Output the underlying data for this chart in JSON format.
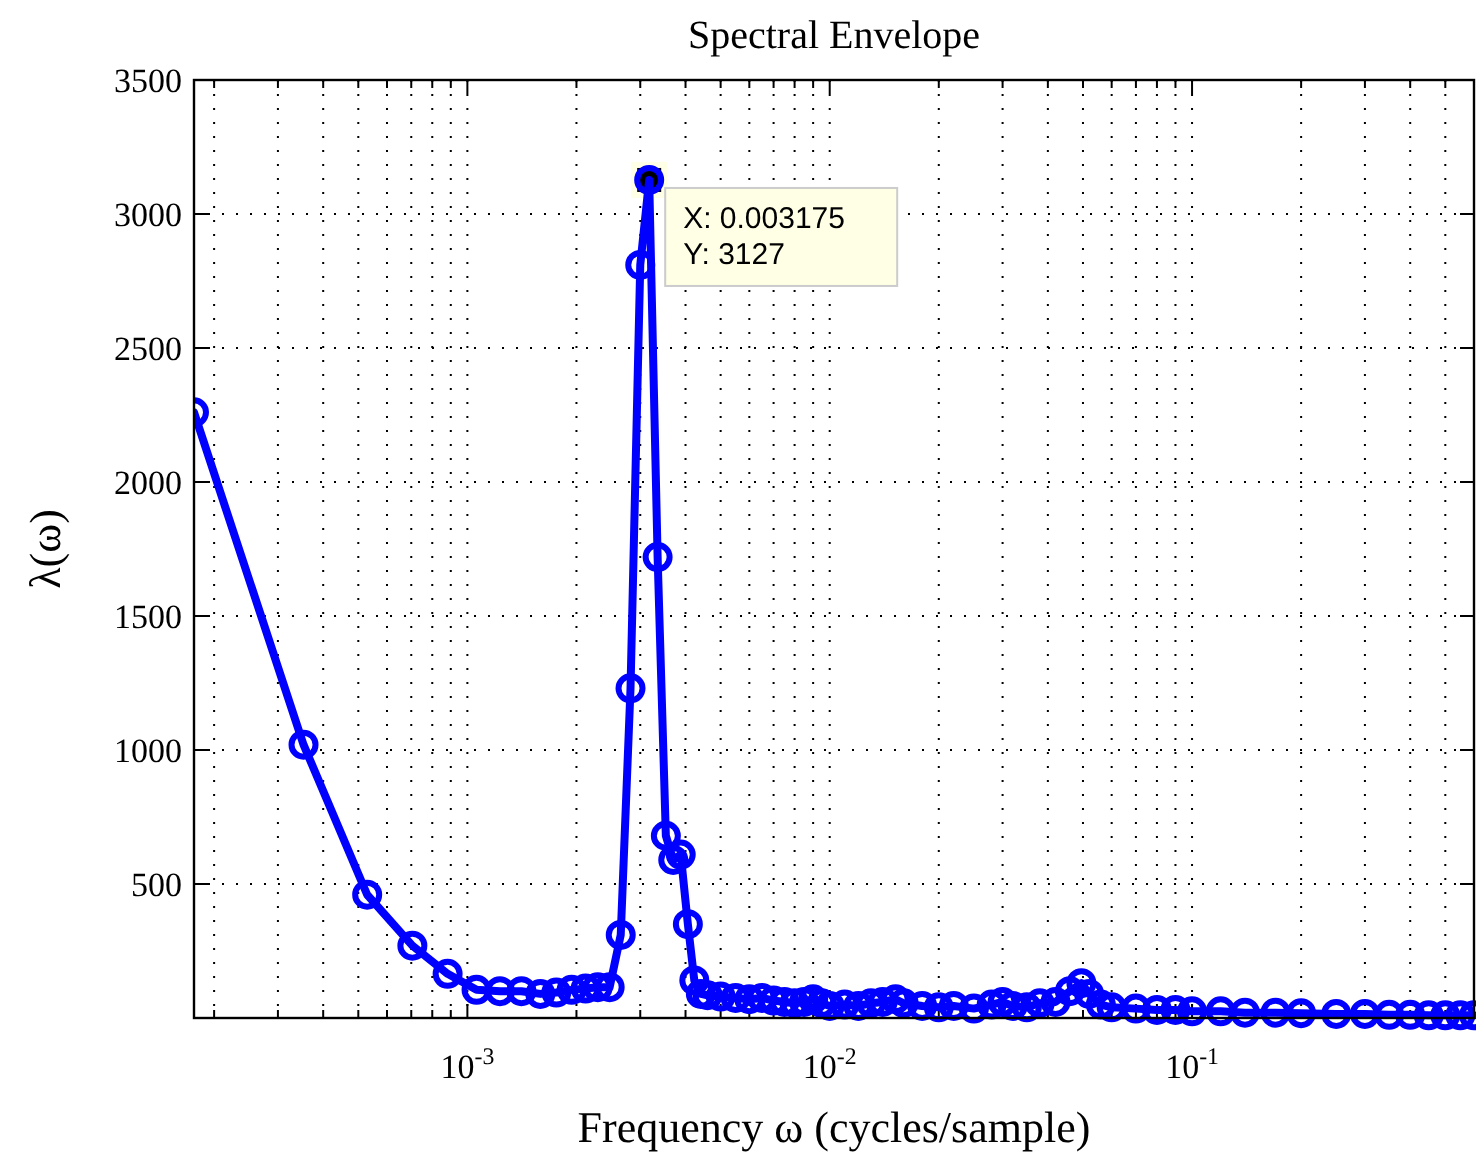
{
  "chart_data": {
    "type": "line",
    "title": "Spectral Envelope",
    "xlabel": "Frequency ω (cycles/sample)",
    "ylabel": "λ(ω)",
    "log": "x",
    "grid": true,
    "marker": "circle",
    "line_style": "solid",
    "xlim": [
      0.000176,
      0.6
    ],
    "ylim": [
      0,
      3500
    ],
    "xticks": [
      {
        "value": 0.0002,
        "label": null
      },
      {
        "value": 0.0003,
        "label": null
      },
      {
        "value": 0.0004,
        "label": null
      },
      {
        "value": 0.0005,
        "label": null
      },
      {
        "value": 0.0006,
        "label": null
      },
      {
        "value": 0.0007,
        "label": null
      },
      {
        "value": 0.0008,
        "label": null
      },
      {
        "value": 0.0009,
        "label": null
      },
      {
        "value": 0.001,
        "label": "10$^{-3}$"
      },
      {
        "value": 0.002,
        "label": null
      },
      {
        "value": 0.003,
        "label": null
      },
      {
        "value": 0.004,
        "label": null
      },
      {
        "value": 0.005,
        "label": null
      },
      {
        "value": 0.006,
        "label": null
      },
      {
        "value": 0.007,
        "label": null
      },
      {
        "value": 0.008,
        "label": null
      },
      {
        "value": 0.009,
        "label": null
      },
      {
        "value": 0.01,
        "label": "10$^{-2}$"
      },
      {
        "value": 0.02,
        "label": null
      },
      {
        "value": 0.03,
        "label": null
      },
      {
        "value": 0.04,
        "label": null
      },
      {
        "value": 0.05,
        "label": null
      },
      {
        "value": 0.06,
        "label": null
      },
      {
        "value": 0.07,
        "label": null
      },
      {
        "value": 0.08,
        "label": null
      },
      {
        "value": 0.09,
        "label": null
      },
      {
        "value": 0.1,
        "label": "10$^{-1}$"
      },
      {
        "value": 0.2,
        "label": null
      },
      {
        "value": 0.3,
        "label": null
      },
      {
        "value": 0.4,
        "label": null
      },
      {
        "value": 0.5,
        "label": null
      }
    ],
    "yticks": [
      500,
      1000,
      1500,
      2000,
      2500,
      3000,
      3500
    ],
    "annotations": [
      {
        "text": "X: 0.003175\nY: 3127",
        "x": 0.003175,
        "y": 3127
      }
    ],
    "series": [
      {
        "color": "#0000ff",
        "x": [
          0.000176,
          0.000353,
          0.000529,
          0.000705,
          0.000882,
          0.00106,
          0.00123,
          0.00141,
          0.00159,
          0.00176,
          0.00194,
          0.00212,
          0.00229,
          0.00247,
          0.00265,
          0.00282,
          0.003,
          0.003175,
          0.00335,
          0.00353,
          0.0037,
          0.00388,
          0.00406,
          0.00423,
          0.00441,
          0.0046,
          0.005,
          0.0055,
          0.006,
          0.0065,
          0.007,
          0.0075,
          0.008,
          0.0085,
          0.009,
          0.0095,
          0.01,
          0.011,
          0.012,
          0.013,
          0.014,
          0.0152,
          0.016,
          0.018,
          0.02,
          0.022,
          0.025,
          0.028,
          0.03,
          0.032,
          0.035,
          0.038,
          0.042,
          0.046,
          0.0495,
          0.052,
          0.056,
          0.06,
          0.07,
          0.08,
          0.09,
          0.1,
          0.12,
          0.14,
          0.17,
          0.2,
          0.25,
          0.3,
          0.35,
          0.4,
          0.45,
          0.5,
          0.55,
          0.6
        ],
        "values": [
          2260,
          1020,
          460,
          270,
          165,
          105,
          100,
          100,
          90,
          95,
          105,
          110,
          115,
          115,
          310,
          1230,
          2810,
          3127,
          1720,
          680,
          590,
          610,
          350,
          140,
          90,
          85,
          80,
          75,
          70,
          75,
          65,
          60,
          55,
          60,
          70,
          55,
          45,
          50,
          45,
          55,
          60,
          70,
          55,
          45,
          40,
          45,
          35,
          50,
          60,
          45,
          40,
          55,
          60,
          100,
          130,
          90,
          50,
          40,
          35,
          30,
          30,
          25,
          25,
          20,
          20,
          18,
          15,
          15,
          12,
          12,
          10,
          10,
          10,
          10
        ]
      }
    ]
  }
}
